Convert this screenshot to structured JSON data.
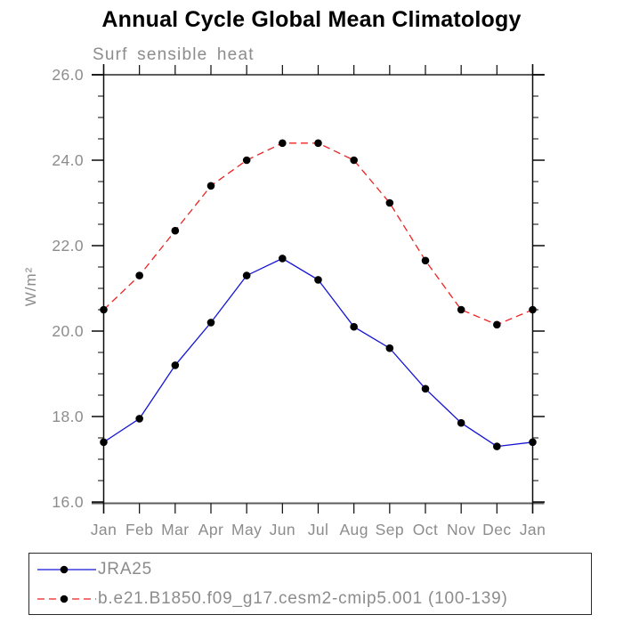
{
  "chart_data": {
    "type": "line",
    "title": "Annual Cycle Global Mean Climatology",
    "subtitle": "Surf sensible heat",
    "ylabel": "W/m²",
    "categories": [
      "Jan",
      "Feb",
      "Mar",
      "Apr",
      "May",
      "Jun",
      "Jul",
      "Aug",
      "Sep",
      "Oct",
      "Nov",
      "Dec",
      "Jan"
    ],
    "ylim": [
      16.0,
      26.0
    ],
    "ytick_major_interval": 2.0,
    "ytick_minor_interval": 0.5,
    "ytick_labels": [
      "16.0",
      "18.0",
      "20.0",
      "22.0",
      "24.0",
      "26.0"
    ],
    "grid": "off",
    "legend_position": "bottom-left-box",
    "series": [
      {
        "name": "JRA25",
        "color": "#1414d6",
        "style": "solid",
        "marker": "filled-circle",
        "marker_color": "#000000",
        "values": [
          17.4,
          17.95,
          19.2,
          20.2,
          21.3,
          21.7,
          21.2,
          20.1,
          19.6,
          18.65,
          17.85,
          17.3,
          17.4
        ]
      },
      {
        "name": "b.e21.B1850.f09_g17.cesm2-cmip5.001 (100-139)",
        "color": "#ee2222",
        "style": "dashed",
        "marker": "filled-circle",
        "marker_color": "#000000",
        "values": [
          20.5,
          21.3,
          22.35,
          23.4,
          24.0,
          24.4,
          24.4,
          24.0,
          23.0,
          21.65,
          20.5,
          20.15,
          20.5
        ]
      }
    ]
  },
  "colors": {
    "muted_text": "#8c8c8c",
    "frame_gray": "#5c5c5c",
    "axis_black": "#0a0a0a",
    "title_black": "#000000",
    "legend_border": "#2a2a2a",
    "background": "#ffffff"
  }
}
